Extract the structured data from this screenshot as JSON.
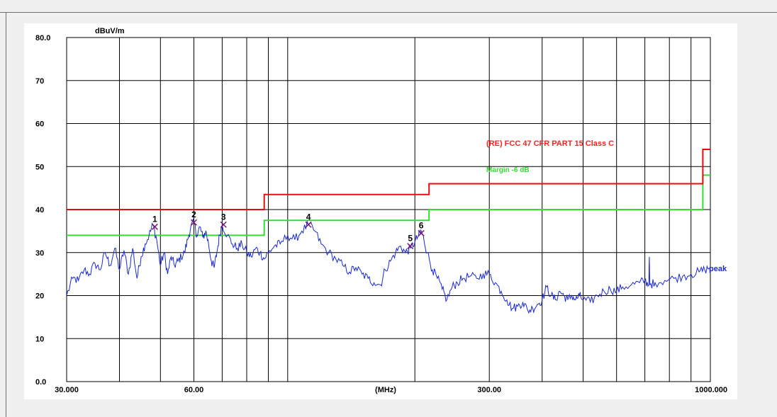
{
  "chart_data": {
    "type": "line",
    "ylabel": "dBuV/m",
    "xlabel": "(MHz)",
    "x_scale": "log",
    "xlim": [
      30,
      1000
    ],
    "ylim": [
      0,
      80
    ],
    "y_tick_labels": [
      {
        "value": 0,
        "label": "0.0"
      },
      {
        "value": 10,
        "label": "10"
      },
      {
        "value": 20,
        "label": "20"
      },
      {
        "value": 30,
        "label": "30"
      },
      {
        "value": 40,
        "label": "40"
      },
      {
        "value": 50,
        "label": "50"
      },
      {
        "value": 60,
        "label": "60"
      },
      {
        "value": 70,
        "label": "70"
      },
      {
        "value": 80,
        "label": "80.0"
      }
    ],
    "x_tick_labels": [
      {
        "value": 30,
        "label": "30.000"
      },
      {
        "value": 60,
        "label": "60.00"
      },
      {
        "value": 300,
        "label": "300.00"
      },
      {
        "value": 1000,
        "label": "1000.000"
      }
    ],
    "x_gridlines": [
      40,
      50,
      60,
      70,
      80,
      90,
      100,
      200,
      300,
      400,
      500,
      600,
      700,
      800,
      900,
      1000
    ],
    "y_gridlines": [
      10,
      20,
      30,
      40,
      50,
      60,
      70
    ],
    "grid": true,
    "legend": [
      {
        "label": "(RE) FCC 47 CFR PART 15 Class C",
        "color": "#ff2020"
      },
      {
        "label": "Margin -6 dB",
        "color": "#33dd33"
      }
    ],
    "limit_line": {
      "name": "(RE) FCC 47 CFR PART 15 Class C",
      "color": "#e01010",
      "points": [
        [
          30,
          40
        ],
        [
          88,
          40
        ],
        [
          88,
          43.5
        ],
        [
          216,
          43.5
        ],
        [
          216,
          46
        ],
        [
          960,
          46
        ],
        [
          960,
          54
        ],
        [
          1000,
          54
        ]
      ]
    },
    "margin_line": {
      "name": "Margin -6 dB",
      "color": "#33dd33",
      "points": [
        [
          30,
          34
        ],
        [
          88,
          34
        ],
        [
          88,
          37.5
        ],
        [
          216,
          37.5
        ],
        [
          216,
          40
        ],
        [
          960,
          40
        ],
        [
          960,
          48
        ],
        [
          1000,
          48
        ]
      ]
    },
    "trace": {
      "name": "peak",
      "color": "#1a2ad0",
      "points": [
        [
          30,
          20
        ],
        [
          31,
          24
        ],
        [
          32,
          23.5
        ],
        [
          33,
          26
        ],
        [
          34,
          25
        ],
        [
          35,
          27.5
        ],
        [
          36,
          26
        ],
        [
          37,
          30
        ],
        [
          38,
          27
        ],
        [
          39,
          31
        ],
        [
          40,
          26
        ],
        [
          41,
          30.5
        ],
        [
          42,
          25
        ],
        [
          43,
          31
        ],
        [
          44,
          24
        ],
        [
          45,
          29
        ],
        [
          46,
          32
        ],
        [
          47,
          34
        ],
        [
          48,
          36.5
        ],
        [
          49,
          33
        ],
        [
          50,
          27
        ],
        [
          51,
          30
        ],
        [
          52,
          25
        ],
        [
          53,
          29
        ],
        [
          54,
          27
        ],
        [
          55,
          28
        ],
        [
          56,
          29
        ],
        [
          57,
          30
        ],
        [
          58,
          33
        ],
        [
          59,
          36
        ],
        [
          60,
          37
        ],
        [
          61,
          34
        ],
        [
          62,
          36
        ],
        [
          63,
          33.5
        ],
        [
          64,
          35
        ],
        [
          65,
          32
        ],
        [
          66,
          28
        ],
        [
          67,
          26.5
        ],
        [
          68,
          30
        ],
        [
          69,
          34
        ],
        [
          70,
          36.5
        ],
        [
          72,
          34
        ],
        [
          74,
          32
        ],
        [
          76,
          31
        ],
        [
          78,
          32
        ],
        [
          80,
          30
        ],
        [
          82,
          29
        ],
        [
          84,
          31
        ],
        [
          86,
          30
        ],
        [
          88,
          28.5
        ],
        [
          90,
          30
        ],
        [
          93,
          31.5
        ],
        [
          96,
          32
        ],
        [
          100,
          34
        ],
        [
          104,
          33
        ],
        [
          108,
          35
        ],
        [
          112,
          36.5
        ],
        [
          116,
          35
        ],
        [
          120,
          32
        ],
        [
          125,
          30
        ],
        [
          130,
          28.5
        ],
        [
          135,
          27
        ],
        [
          140,
          25.5
        ],
        [
          145,
          26.5
        ],
        [
          150,
          25
        ],
        [
          155,
          24
        ],
        [
          160,
          23
        ],
        [
          166,
          22.5
        ],
        [
          170,
          26
        ],
        [
          175,
          28
        ],
        [
          180,
          30
        ],
        [
          185,
          31.5
        ],
        [
          190,
          30
        ],
        [
          195,
          31
        ],
        [
          200,
          32.5
        ],
        [
          204,
          34
        ],
        [
          207,
          35
        ],
        [
          210,
          33
        ],
        [
          214,
          30
        ],
        [
          220,
          26
        ],
        [
          226,
          24
        ],
        [
          232,
          21.5
        ],
        [
          238,
          19
        ],
        [
          245,
          22
        ],
        [
          252,
          23
        ],
        [
          260,
          24
        ],
        [
          270,
          24.5
        ],
        [
          280,
          24
        ],
        [
          290,
          25
        ],
        [
          300,
          25
        ],
        [
          310,
          23
        ],
        [
          320,
          21
        ],
        [
          330,
          19
        ],
        [
          340,
          17
        ],
        [
          350,
          17.5
        ],
        [
          360,
          18.5
        ],
        [
          370,
          16.5
        ],
        [
          380,
          17
        ],
        [
          390,
          18
        ],
        [
          400,
          19
        ],
        [
          410,
          22
        ],
        [
          420,
          20
        ],
        [
          430,
          19
        ],
        [
          440,
          21
        ],
        [
          450,
          20
        ],
        [
          460,
          19
        ],
        [
          470,
          20
        ],
        [
          480,
          19
        ],
        [
          490,
          20
        ],
        [
          500,
          19
        ],
        [
          520,
          18.5
        ],
        [
          540,
          20
        ],
        [
          560,
          21
        ],
        [
          580,
          21.5
        ],
        [
          600,
          21
        ],
        [
          620,
          22
        ],
        [
          650,
          22.5
        ],
        [
          680,
          23
        ],
        [
          700,
          23.5
        ],
        [
          715,
          22.5
        ],
        [
          717,
          29
        ],
        [
          719,
          22.5
        ],
        [
          740,
          23
        ],
        [
          780,
          23.5
        ],
        [
          820,
          24
        ],
        [
          860,
          24.5
        ],
        [
          900,
          25
        ],
        [
          940,
          25.5
        ],
        [
          970,
          26
        ],
        [
          1000,
          26.5
        ]
      ]
    },
    "markers": [
      {
        "label": "1",
        "x": 48.5,
        "y": 36
      },
      {
        "label": "2",
        "x": 60.0,
        "y": 37
      },
      {
        "label": "3",
        "x": 70.5,
        "y": 36.5
      },
      {
        "label": "4",
        "x": 112,
        "y": 36.5
      },
      {
        "label": "5",
        "x": 195,
        "y": 31.5
      },
      {
        "label": "6",
        "x": 207,
        "y": 34.5
      }
    ],
    "trace_label": "peak",
    "colors": {
      "trace": "#1a2ad0",
      "limit": "#e01010",
      "margin": "#33dd33",
      "marker": "#7a1a6e",
      "grid": "#000000"
    }
  }
}
